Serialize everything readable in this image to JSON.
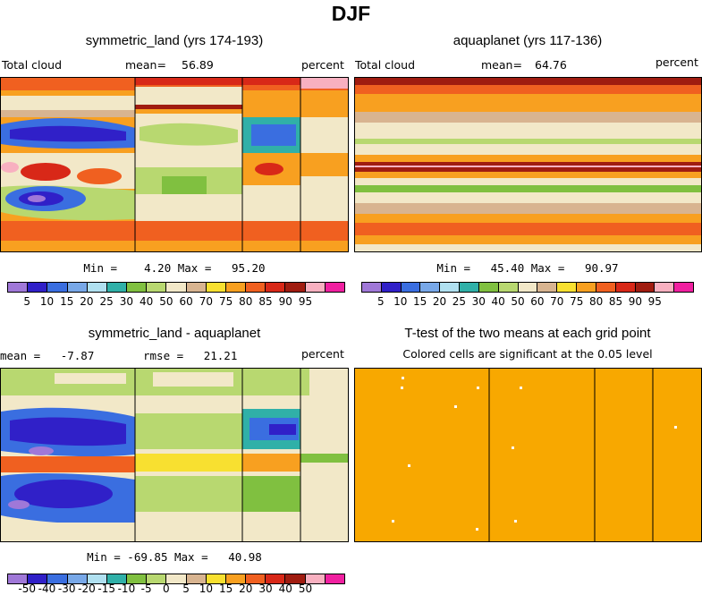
{
  "title": "DJF",
  "panels": {
    "p1": {
      "title": "symmetric_land (yrs 174-193)",
      "left_label": "Total cloud",
      "mean_label": "mean=",
      "mean_value": "56.89",
      "right_label": "percent",
      "minmax": "Min =    4.20 Max =   95.20"
    },
    "p2": {
      "title": "aquaplanet (yrs 117-136)",
      "left_label": "Total cloud",
      "mean_label": "mean=",
      "mean_value": "64.76",
      "right_label": "percent",
      "minmax": "Min =   45.40 Max =   90.97"
    },
    "p3": {
      "title": "symmetric_land - aquaplanet",
      "mean_text": "mean =   -7.87",
      "rmse_text": "rmse =   21.21",
      "right_label": "percent",
      "minmax": "Min = -69.85 Max =   40.98"
    },
    "p4": {
      "title": "T-test of the two means at each grid point",
      "subtitle": "Colored cells are significant at the 0.05 level"
    }
  },
  "colorbar_field": {
    "labels": [
      "5",
      "10",
      "15",
      "20",
      "25",
      "30",
      "40",
      "50",
      "60",
      "70",
      "75",
      "80",
      "85",
      "90",
      "95"
    ],
    "colors": [
      "#a078d8",
      "#3020c8",
      "#3a6ee0",
      "#78a8e8",
      "#b0e0f0",
      "#30b0a8",
      "#80c040",
      "#b8d870",
      "#f2e8c8",
      "#d8b490",
      "#f8e030",
      "#f8a020",
      "#f06020",
      "#d82818",
      "#a01c10",
      "#f8b0c0",
      "#f020a0"
    ]
  },
  "colorbar_diff": {
    "labels": [
      "-50",
      "-40",
      "-30",
      "-20",
      "-15",
      "-10",
      "-5",
      "0",
      "5",
      "10",
      "15",
      "20",
      "30",
      "40",
      "50"
    ],
    "colors": [
      "#a078d8",
      "#3020c8",
      "#3a6ee0",
      "#78a8e8",
      "#b0e0f0",
      "#30b0a8",
      "#80c040",
      "#b8d870",
      "#f2e8c8",
      "#d8b490",
      "#f8e030",
      "#f8a020",
      "#f06020",
      "#d82818",
      "#a01c10",
      "#f8b0c0",
      "#f020a0"
    ]
  },
  "chart_data": {
    "type": "heatmap",
    "season": "DJF",
    "variable": "Total cloud",
    "units": "percent",
    "maps": [
      {
        "title": "symmetric_land (yrs 174-193)",
        "mean": 56.89,
        "min": 4.2,
        "max": 95.2
      },
      {
        "title": "aquaplanet (yrs 117-136)",
        "mean": 64.76,
        "min": 45.4,
        "max": 90.97
      },
      {
        "title": "symmetric_land - aquaplanet",
        "mean": -7.87,
        "rmse": 21.21,
        "min": -69.85,
        "max": 40.98
      },
      {
        "title": "T-test of the two means at each grid point",
        "note": "Colored cells are significant at the 0.05 level"
      }
    ],
    "levels_field": [
      5,
      10,
      15,
      20,
      25,
      30,
      40,
      50,
      60,
      70,
      75,
      80,
      85,
      90,
      95
    ],
    "levels_diff": [
      -50,
      -40,
      -30,
      -20,
      -15,
      -10,
      -5,
      0,
      5,
      10,
      15,
      20,
      30,
      40,
      50
    ]
  }
}
